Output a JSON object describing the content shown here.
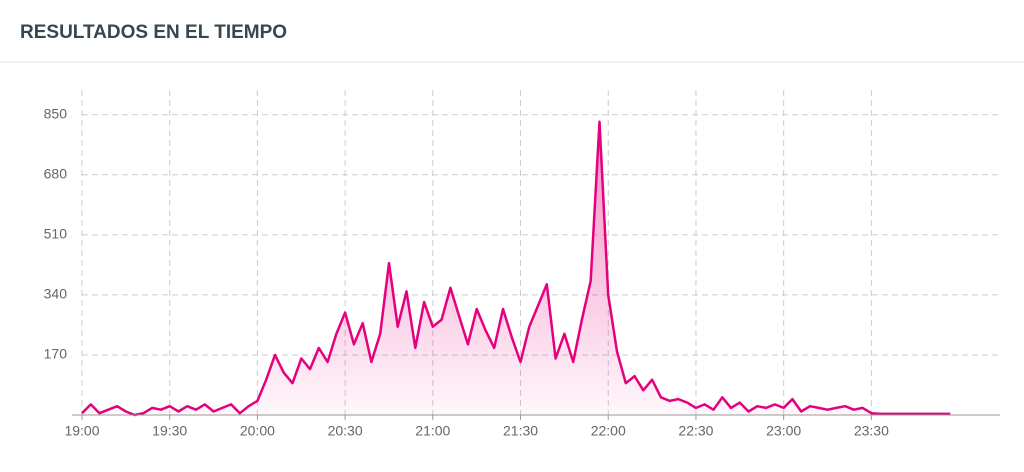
{
  "header": {
    "title": "RESULTADOS EN EL TIEMPO"
  },
  "chart_data": {
    "type": "area",
    "color": "#e5007d",
    "grid": true,
    "x": [
      1140,
      1143,
      1146,
      1149,
      1152,
      1155,
      1158,
      1161,
      1164,
      1167,
      1170,
      1173,
      1176,
      1179,
      1182,
      1185,
      1188,
      1191,
      1194,
      1197,
      1200,
      1203,
      1206,
      1209,
      1212,
      1215,
      1218,
      1221,
      1224,
      1227,
      1230,
      1233,
      1236,
      1239,
      1242,
      1245,
      1248,
      1251,
      1254,
      1257,
      1260,
      1263,
      1266,
      1269,
      1272,
      1275,
      1278,
      1281,
      1284,
      1287,
      1290,
      1293,
      1296,
      1299,
      1302,
      1305,
      1308,
      1311,
      1314,
      1317,
      1320,
      1323,
      1326,
      1329,
      1332,
      1335,
      1338,
      1341,
      1344,
      1347,
      1350,
      1353,
      1356,
      1359,
      1362,
      1365,
      1368,
      1371,
      1374,
      1377,
      1380,
      1383,
      1386,
      1389,
      1392,
      1395,
      1398,
      1401,
      1404,
      1407,
      1410,
      1413,
      1416,
      1419,
      1422,
      1425,
      1428,
      1431,
      1434,
      1437
    ],
    "values": [
      5,
      30,
      5,
      15,
      25,
      10,
      0,
      5,
      20,
      15,
      25,
      10,
      25,
      15,
      30,
      10,
      20,
      30,
      5,
      25,
      40,
      100,
      170,
      120,
      90,
      160,
      130,
      190,
      150,
      230,
      290,
      200,
      260,
      150,
      230,
      430,
      250,
      350,
      190,
      320,
      250,
      270,
      360,
      280,
      200,
      300,
      240,
      190,
      300,
      220,
      150,
      250,
      310,
      370,
      160,
      230,
      150,
      270,
      380,
      830,
      340,
      180,
      90,
      110,
      70,
      100,
      50,
      40,
      45,
      35,
      20,
      30,
      15,
      50,
      20,
      35,
      10,
      25,
      20,
      30,
      20,
      45,
      10,
      25,
      20,
      15,
      20,
      25,
      15,
      20,
      5,
      3,
      3,
      3,
      3,
      3,
      3,
      3,
      3,
      3
    ],
    "xlim": [
      1140,
      1454
    ],
    "xticks": [
      {
        "value": 1140,
        "label": "19:00"
      },
      {
        "value": 1170,
        "label": "19:30"
      },
      {
        "value": 1200,
        "label": "20:00"
      },
      {
        "value": 1230,
        "label": "20:30"
      },
      {
        "value": 1260,
        "label": "21:00"
      },
      {
        "value": 1290,
        "label": "21:30"
      },
      {
        "value": 1320,
        "label": "22:00"
      },
      {
        "value": 1350,
        "label": "22:30"
      },
      {
        "value": 1380,
        "label": "23:00"
      },
      {
        "value": 1410,
        "label": "23:30"
      }
    ],
    "ylim": [
      0,
      920
    ],
    "yticks": [
      170,
      340,
      510,
      680,
      850
    ]
  }
}
